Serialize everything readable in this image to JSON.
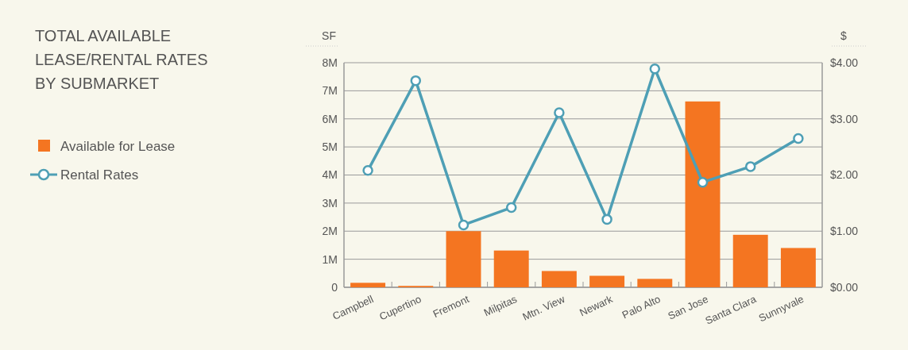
{
  "chart_data": {
    "type": "bar",
    "title": "TOTAL AVAILABLE LEASE/RENTAL RATES BY SUBMARKET",
    "ylabel": "SF",
    "y2label": "$",
    "categories": [
      "Campbell",
      "Cupertino",
      "Fremont",
      "Milpitas",
      "Mtn. View",
      "Newark",
      "Palo Alto",
      "San Jose",
      "Santa Clara",
      "Sunnyvale"
    ],
    "series": [
      {
        "name": "Available for Lease",
        "color": "#f47521",
        "values": [
          160000,
          50000,
          2000000,
          1310000,
          580000,
          410000,
          300000,
          6620000,
          1870000,
          1400000
        ]
      },
      {
        "name": "Rental Rates",
        "type": "line",
        "axis": "y2",
        "color": "#4e9fb5",
        "marker": "circle",
        "values": [
          2.08,
          3.68,
          1.11,
          1.42,
          3.11,
          1.21,
          3.89,
          1.87,
          2.15,
          2.65
        ]
      }
    ],
    "ylim": [
      0,
      8000000
    ],
    "yticks": [
      {
        "value": 0,
        "label": "0"
      },
      {
        "value": 1000000,
        "label": "1M"
      },
      {
        "value": 2000000,
        "label": "2M"
      },
      {
        "value": 3000000,
        "label": "3M"
      },
      {
        "value": 4000000,
        "label": "4M"
      },
      {
        "value": 5000000,
        "label": "5M"
      },
      {
        "value": 6000000,
        "label": "6M"
      },
      {
        "value": 7000000,
        "label": "7M"
      },
      {
        "value": 8000000,
        "label": "8M"
      }
    ],
    "y2lim": [
      0,
      4
    ],
    "y2ticks": [
      {
        "value": 0,
        "label": "$0.00"
      },
      {
        "value": 1,
        "label": "$1.00"
      },
      {
        "value": 2,
        "label": "$2.00"
      },
      {
        "value": 3,
        "label": "$3.00"
      },
      {
        "value": 4,
        "label": "$4.00"
      }
    ],
    "grid": "y",
    "legend": "left"
  }
}
